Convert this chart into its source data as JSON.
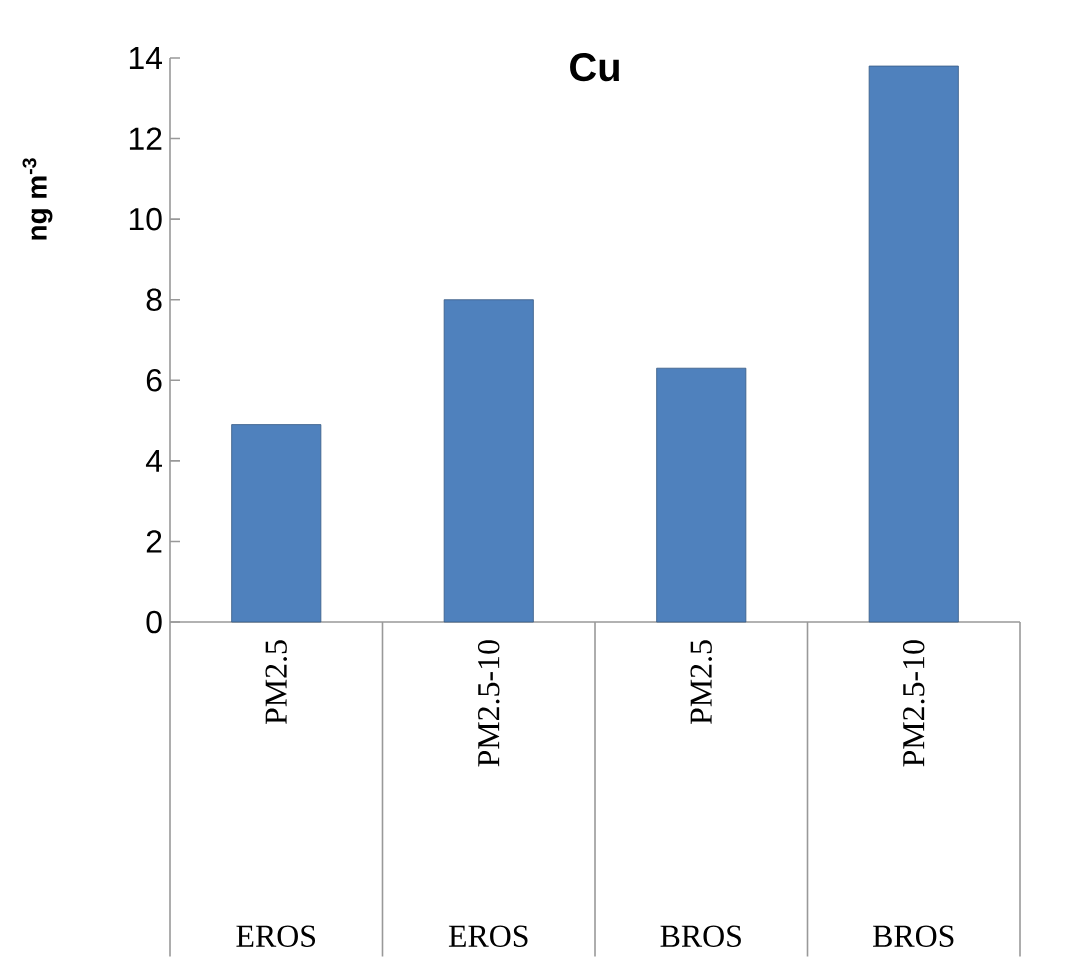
{
  "chart_data": {
    "type": "bar",
    "title": "Cu",
    "ylabel": "ng m$^{-3}$",
    "categories": [
      "PM2.5",
      "PM2.5-10",
      "PM2.5",
      "PM2.5-10"
    ],
    "values": [
      4.9,
      8.0,
      6.3,
      13.8
    ],
    "color": "#4f81bd",
    "ylim": [
      0,
      14
    ],
    "yticks": [
      0,
      2,
      4,
      6,
      8,
      10,
      12,
      14
    ],
    "annotations": [
      "EROS",
      "EROS",
      "BROS",
      "BROS"
    ]
  }
}
